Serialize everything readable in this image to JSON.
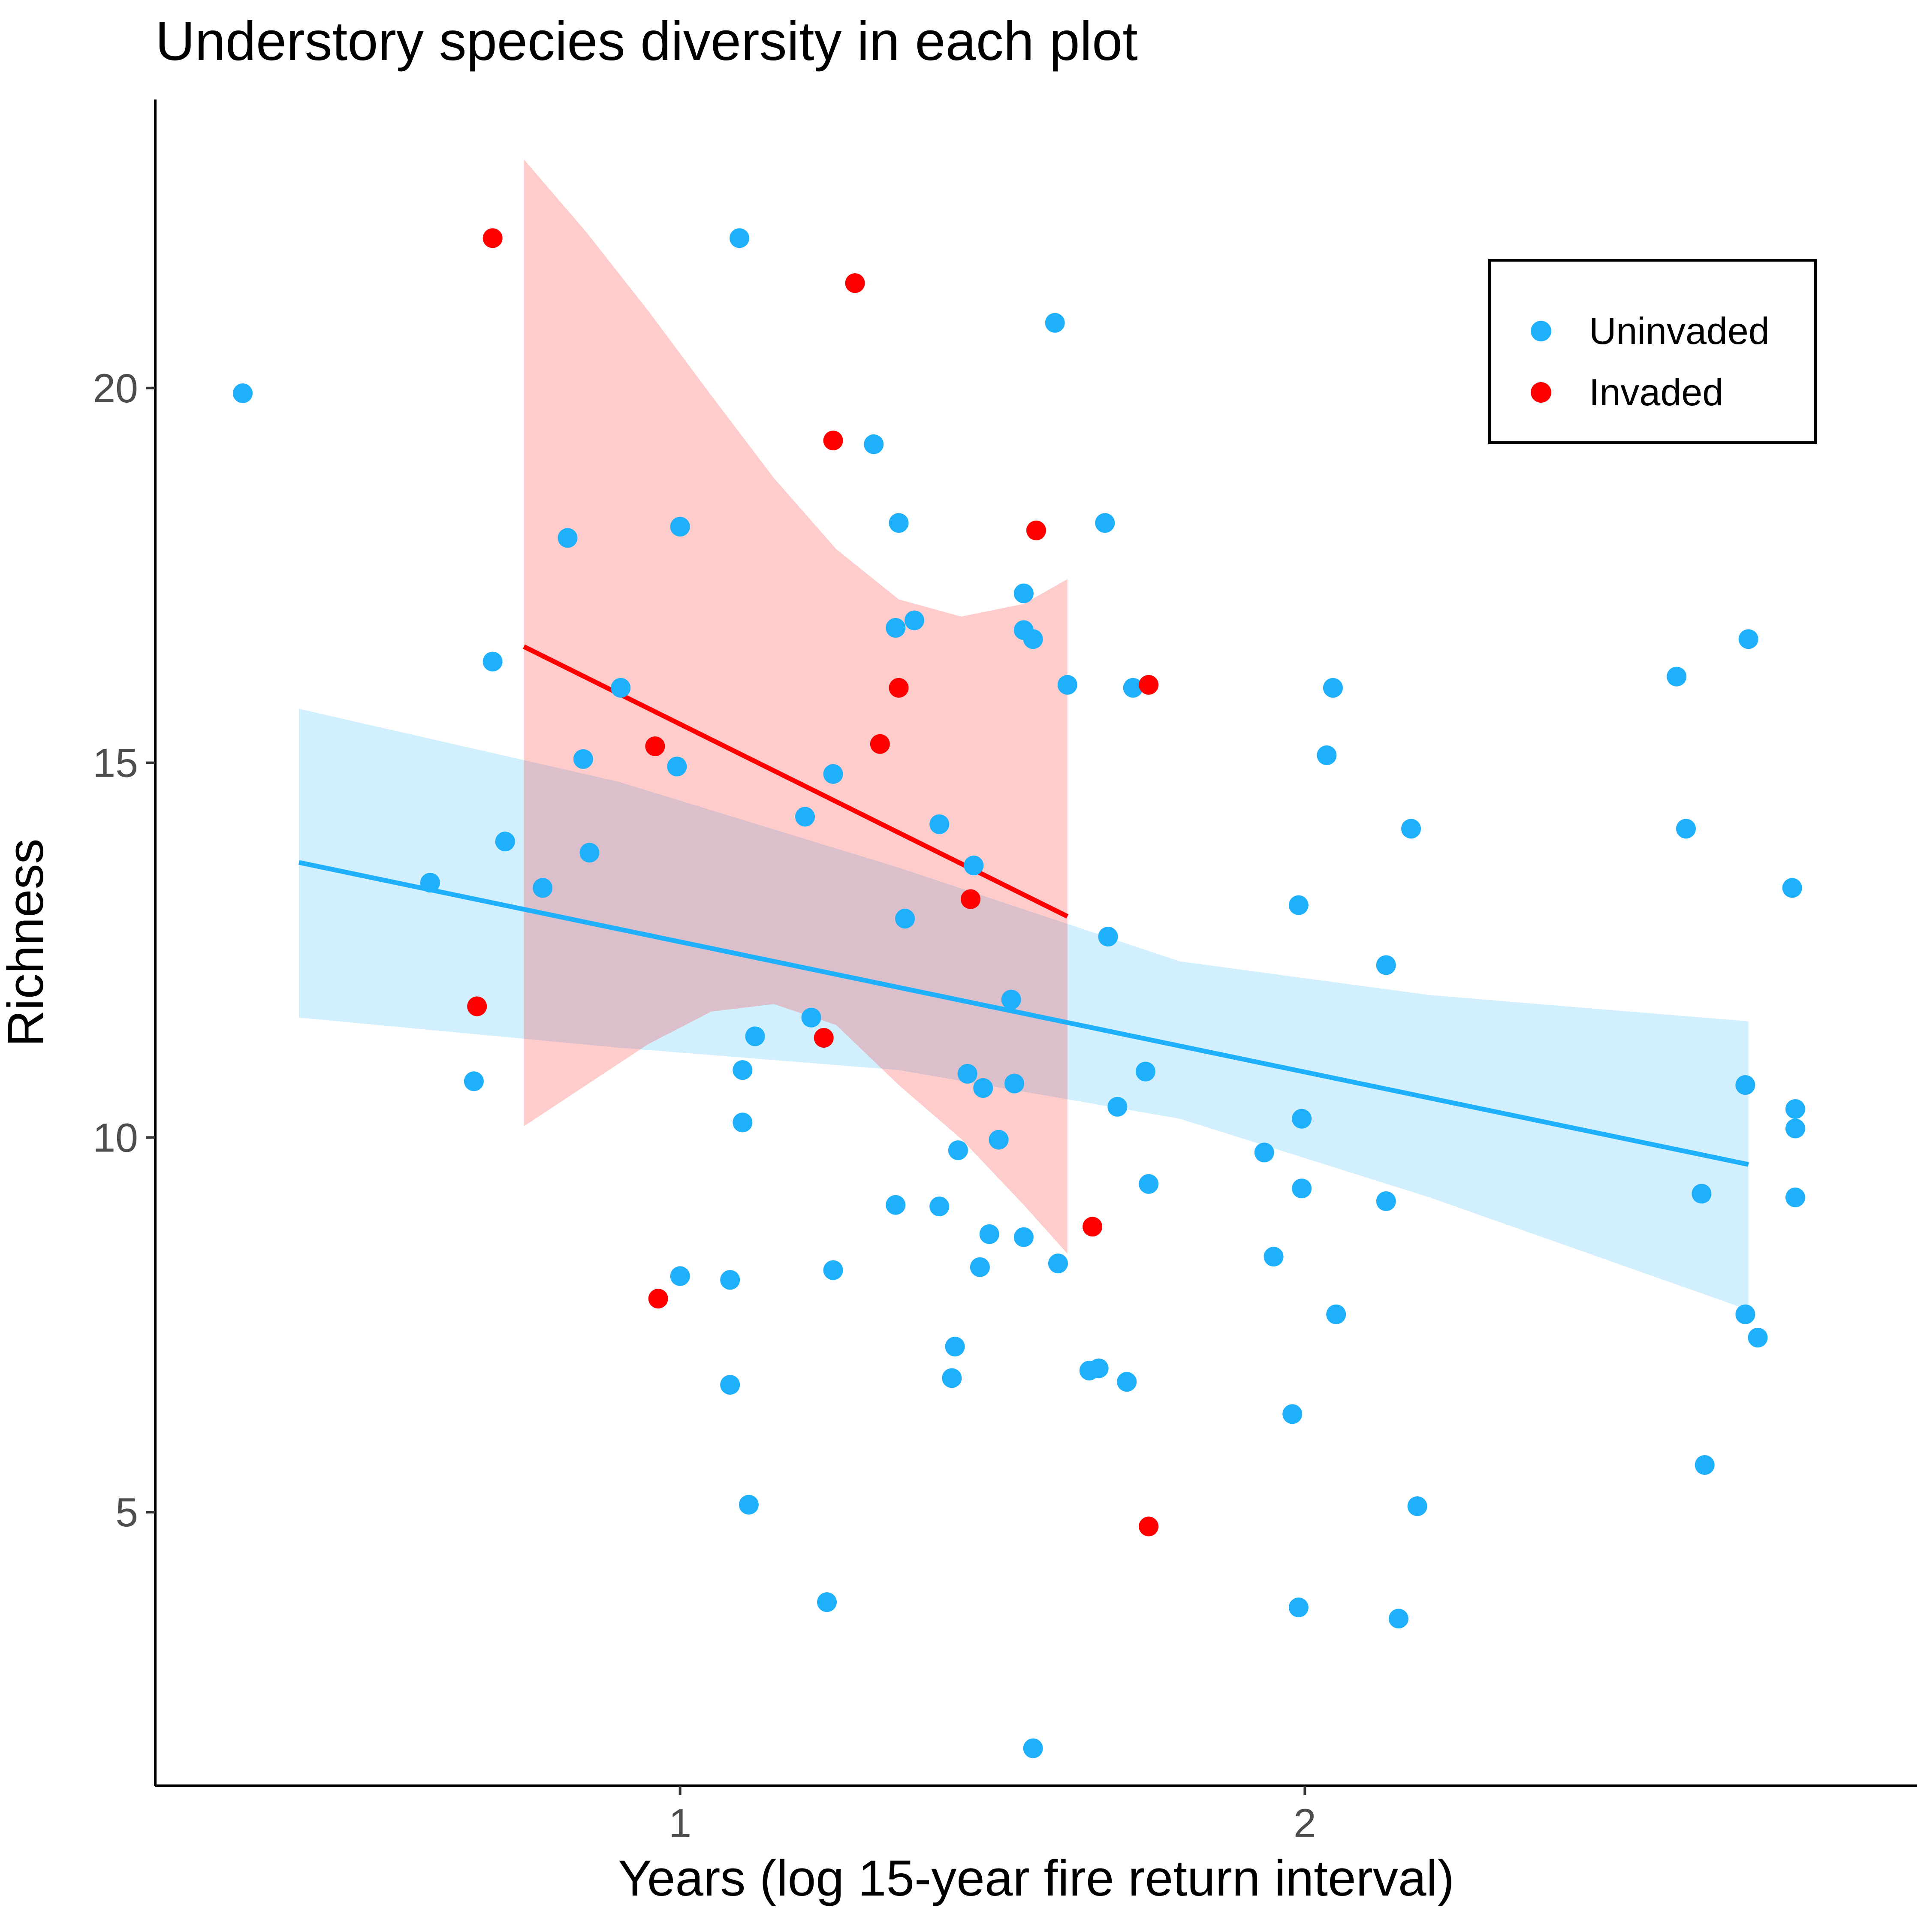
{
  "chart_data": {
    "type": "scatter",
    "title": "Understory species diversity in each plot",
    "xlabel": "Years (log 15-year fire return interval)",
    "ylabel": "Richness",
    "xlim": [
      0.16,
      2.98
    ],
    "ylim": [
      1.35,
      23.85
    ],
    "x_ticks": [
      1,
      2
    ],
    "y_ticks": [
      5,
      10,
      15,
      20
    ],
    "grid": false,
    "legend_position": "top-right",
    "series": [
      {
        "name": "Uninvaded",
        "color": "#1eb0fa",
        "points": [
          [
            0.3,
            19.93
          ],
          [
            0.6,
            13.4
          ],
          [
            0.67,
            10.75
          ],
          [
            0.7,
            16.35
          ],
          [
            0.72,
            13.95
          ],
          [
            0.78,
            13.33
          ],
          [
            0.82,
            18.0
          ],
          [
            0.845,
            15.05
          ],
          [
            0.855,
            13.8
          ],
          [
            0.905,
            16.0
          ],
          [
            0.995,
            14.95
          ],
          [
            1.0,
            8.15
          ],
          [
            1.0,
            18.15
          ],
          [
            1.08,
            8.1
          ],
          [
            1.08,
            6.7
          ],
          [
            1.095,
            22.0
          ],
          [
            1.1,
            10.9
          ],
          [
            1.1,
            10.2
          ],
          [
            1.11,
            5.1
          ],
          [
            1.12,
            11.35
          ],
          [
            1.2,
            14.28
          ],
          [
            1.21,
            11.6
          ],
          [
            1.245,
            14.85
          ],
          [
            1.245,
            8.23
          ],
          [
            1.235,
            3.8
          ],
          [
            1.31,
            19.25
          ],
          [
            1.345,
            9.1
          ],
          [
            1.345,
            16.8
          ],
          [
            1.35,
            18.2
          ],
          [
            1.36,
            12.92
          ],
          [
            1.375,
            16.9
          ],
          [
            1.415,
            14.18
          ],
          [
            1.415,
            9.08
          ],
          [
            1.435,
            6.79
          ],
          [
            1.44,
            7.21
          ],
          [
            1.445,
            9.83
          ],
          [
            1.46,
            10.85
          ],
          [
            1.47,
            13.63
          ],
          [
            1.48,
            8.27
          ],
          [
            1.485,
            10.66
          ],
          [
            1.495,
            8.71
          ],
          [
            1.51,
            9.97
          ],
          [
            1.53,
            11.84
          ],
          [
            1.535,
            10.72
          ],
          [
            1.55,
            17.26
          ],
          [
            1.55,
            16.77
          ],
          [
            1.55,
            8.67
          ],
          [
            1.565,
            16.65
          ],
          [
            1.565,
            1.85
          ],
          [
            1.6,
            20.87
          ],
          [
            1.605,
            8.32
          ],
          [
            1.62,
            16.04
          ],
          [
            1.655,
            6.89
          ],
          [
            1.67,
            6.92
          ],
          [
            1.68,
            18.2
          ],
          [
            1.685,
            12.68
          ],
          [
            1.7,
            10.41
          ],
          [
            1.715,
            6.74
          ],
          [
            1.725,
            16.0
          ],
          [
            1.745,
            10.88
          ],
          [
            1.75,
            9.38
          ],
          [
            1.935,
            9.8
          ],
          [
            1.95,
            8.41
          ],
          [
            1.98,
            6.31
          ],
          [
            1.99,
            13.1
          ],
          [
            1.995,
            10.25
          ],
          [
            1.995,
            9.32
          ],
          [
            1.99,
            3.73
          ],
          [
            2.035,
            15.1
          ],
          [
            2.045,
            16.0
          ],
          [
            2.05,
            7.64
          ],
          [
            2.13,
            12.3
          ],
          [
            2.13,
            9.15
          ],
          [
            2.15,
            3.58
          ],
          [
            2.17,
            14.12
          ],
          [
            2.18,
            5.08
          ],
          [
            2.595,
            16.15
          ],
          [
            2.61,
            14.12
          ],
          [
            2.635,
            9.25
          ],
          [
            2.64,
            5.63
          ],
          [
            2.705,
            10.7
          ],
          [
            2.705,
            7.64
          ],
          [
            2.71,
            16.65
          ],
          [
            2.725,
            7.33
          ],
          [
            2.78,
            13.33
          ],
          [
            2.785,
            10.38
          ],
          [
            2.785,
            10.12
          ],
          [
            2.785,
            9.2
          ]
        ],
        "fit": {
          "x": [
            0.39,
            2.71
          ],
          "y": [
            13.67,
            9.64
          ]
        },
        "ci_upper": [
          [
            0.39,
            15.72
          ],
          [
            0.9,
            14.75
          ],
          [
            1.35,
            13.6
          ],
          [
            1.8,
            12.35
          ],
          [
            2.2,
            11.9
          ],
          [
            2.71,
            11.55
          ]
        ],
        "ci_lower": [
          [
            0.39,
            11.6
          ],
          [
            0.9,
            11.2
          ],
          [
            1.35,
            10.9
          ],
          [
            1.8,
            10.25
          ],
          [
            2.2,
            9.2
          ],
          [
            2.71,
            7.7
          ]
        ]
      },
      {
        "name": "Invaded",
        "color": "#ff0000",
        "points": [
          [
            0.7,
            22.0
          ],
          [
            0.675,
            11.75
          ],
          [
            0.96,
            15.22
          ],
          [
            0.965,
            7.85
          ],
          [
            1.23,
            11.33
          ],
          [
            1.245,
            19.3
          ],
          [
            1.28,
            21.4
          ],
          [
            1.32,
            15.25
          ],
          [
            1.35,
            16.0
          ],
          [
            1.465,
            13.18
          ],
          [
            1.57,
            18.1
          ],
          [
            1.66,
            8.81
          ],
          [
            1.75,
            16.04
          ],
          [
            1.75,
            4.81
          ]
        ],
        "fit": {
          "x": [
            0.75,
            1.62
          ],
          "y": [
            16.55,
            12.95
          ]
        },
        "ci_upper": [
          [
            0.75,
            23.05
          ],
          [
            0.85,
            22.08
          ],
          [
            0.95,
            21.02
          ],
          [
            1.05,
            19.9
          ],
          [
            1.15,
            18.8
          ],
          [
            1.25,
            17.85
          ],
          [
            1.35,
            17.18
          ],
          [
            1.45,
            16.95
          ],
          [
            1.55,
            17.12
          ],
          [
            1.62,
            17.45
          ]
        ],
        "ci_lower": [
          [
            0.75,
            10.15
          ],
          [
            0.85,
            10.7
          ],
          [
            0.95,
            11.25
          ],
          [
            1.05,
            11.68
          ],
          [
            1.15,
            11.78
          ],
          [
            1.25,
            11.5
          ],
          [
            1.35,
            10.7
          ],
          [
            1.45,
            9.98
          ],
          [
            1.55,
            9.1
          ],
          [
            1.62,
            8.45
          ]
        ]
      }
    ]
  }
}
